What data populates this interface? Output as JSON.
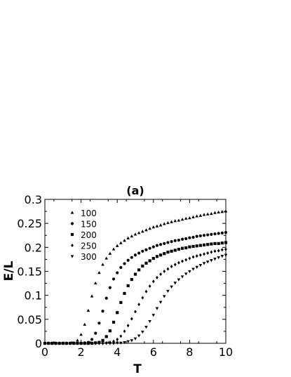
{
  "chart_data": {
    "type": "scatter",
    "title": "(a)",
    "xlabel": "T",
    "ylabel": "E/L",
    "xlim": [
      0,
      10
    ],
    "ylim": [
      0,
      0.3
    ],
    "xticks": [
      "0",
      "2",
      "4",
      "6",
      "8",
      "10"
    ],
    "yticks": [
      "0",
      "0.05",
      "0.1",
      "0.15",
      "0.2",
      "0.25",
      "0.3"
    ],
    "legend_position": "upper-left",
    "grid": false,
    "x": [
      0.0,
      0.2,
      0.4,
      0.6,
      0.8,
      1.0,
      1.2,
      1.4,
      1.6,
      1.8,
      2.0,
      2.2,
      2.4,
      2.6,
      2.8,
      3.0,
      3.2,
      3.4,
      3.6,
      3.8,
      4.0,
      4.2,
      4.4,
      4.6,
      4.8,
      5.0,
      5.2,
      5.4,
      5.6,
      5.8,
      6.0,
      6.2,
      6.4,
      6.6,
      6.8,
      7.0,
      7.2,
      7.4,
      7.6,
      7.8,
      8.0,
      8.2,
      8.4,
      8.6,
      8.8,
      9.0,
      9.2,
      9.4,
      9.6,
      9.8,
      10.0
    ],
    "series": [
      {
        "name": "100",
        "marker": "triangle-up",
        "values": [
          0.0,
          0.0,
          0.0,
          0.0,
          0.0,
          0.0,
          0.0,
          0.0,
          0.001,
          0.006,
          0.018,
          0.039,
          0.068,
          0.098,
          0.125,
          0.147,
          0.164,
          0.177,
          0.187,
          0.196,
          0.203,
          0.209,
          0.214,
          0.219,
          0.223,
          0.227,
          0.23,
          0.233,
          0.236,
          0.239,
          0.242,
          0.244,
          0.246,
          0.249,
          0.251,
          0.253,
          0.255,
          0.256,
          0.258,
          0.26,
          0.261,
          0.263,
          0.265,
          0.266,
          0.268,
          0.269,
          0.27,
          0.272,
          0.273,
          0.274,
          0.275
        ]
      },
      {
        "name": "150",
        "marker": "circle",
        "values": [
          0.0,
          0.0,
          0.0,
          0.0,
          0.0,
          0.0,
          0.0,
          0.0,
          0.0,
          0.0,
          0.0,
          0.001,
          0.002,
          0.008,
          0.021,
          0.042,
          0.067,
          0.094,
          0.116,
          0.134,
          0.147,
          0.158,
          0.166,
          0.173,
          0.179,
          0.184,
          0.188,
          0.192,
          0.195,
          0.198,
          0.201,
          0.204,
          0.206,
          0.208,
          0.21,
          0.212,
          0.214,
          0.215,
          0.217,
          0.218,
          0.22,
          0.221,
          0.223,
          0.224,
          0.225,
          0.226,
          0.227,
          0.228,
          0.229,
          0.23,
          0.231
        ]
      },
      {
        "name": "200",
        "marker": "square",
        "values": [
          0.0,
          0.0,
          0.0,
          0.0,
          0.0,
          0.0,
          0.0,
          0.0,
          0.0,
          0.0,
          0.0,
          0.0,
          0.0,
          0.0,
          0.001,
          0.002,
          0.006,
          0.014,
          0.026,
          0.044,
          0.064,
          0.085,
          0.104,
          0.12,
          0.133,
          0.144,
          0.153,
          0.161,
          0.167,
          0.172,
          0.177,
          0.181,
          0.184,
          0.187,
          0.19,
          0.192,
          0.194,
          0.196,
          0.198,
          0.199,
          0.201,
          0.202,
          0.203,
          0.204,
          0.205,
          0.206,
          0.207,
          0.208,
          0.208,
          0.209,
          0.21
        ]
      },
      {
        "name": "250",
        "marker": "diamond",
        "values": [
          0.0,
          0.0,
          0.0,
          0.0,
          0.0,
          0.0,
          0.0,
          0.0,
          0.0,
          0.0,
          0.0,
          0.0,
          0.0,
          0.0,
          0.0,
          0.0,
          0.0,
          0.001,
          0.002,
          0.004,
          0.008,
          0.015,
          0.025,
          0.037,
          0.051,
          0.066,
          0.081,
          0.095,
          0.108,
          0.119,
          0.129,
          0.137,
          0.144,
          0.15,
          0.155,
          0.16,
          0.164,
          0.168,
          0.171,
          0.174,
          0.177,
          0.18,
          0.182,
          0.184,
          0.186,
          0.188,
          0.19,
          0.192,
          0.193,
          0.195,
          0.196
        ]
      },
      {
        "name": "300",
        "marker": "triangle-down",
        "values": [
          0.0,
          0.0,
          0.0,
          0.0,
          0.0,
          0.0,
          0.0,
          0.0,
          0.0,
          0.0,
          0.0,
          0.0,
          0.0,
          0.0,
          0.0,
          0.0,
          0.0,
          0.0,
          0.0,
          0.0,
          0.001,
          0.001,
          0.002,
          0.004,
          0.006,
          0.01,
          0.016,
          0.024,
          0.034,
          0.046,
          0.059,
          0.073,
          0.086,
          0.098,
          0.109,
          0.118,
          0.126,
          0.133,
          0.139,
          0.145,
          0.15,
          0.155,
          0.159,
          0.163,
          0.167,
          0.17,
          0.173,
          0.176,
          0.179,
          0.182,
          0.184
        ]
      }
    ]
  }
}
